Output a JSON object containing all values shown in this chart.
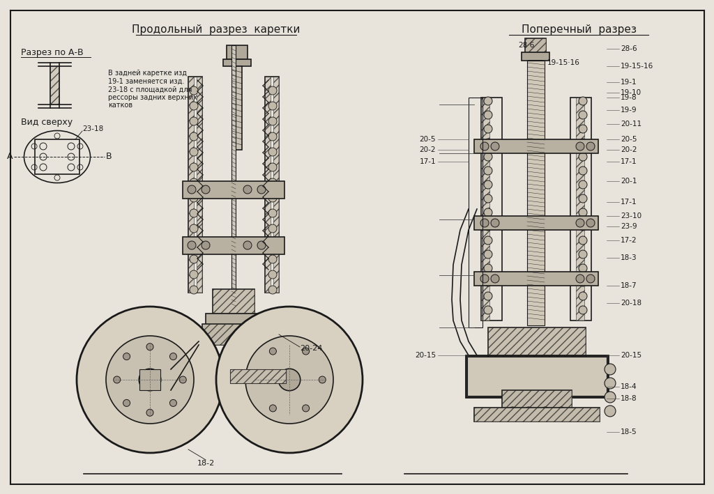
{
  "title": "",
  "background_color": "#e8e4dc",
  "paper_color": "#ddd8cc",
  "line_color": "#1a1a1a",
  "title_left": "Продольный  разрез  каретки",
  "title_right": "Поперечный  разрез",
  "subtitle_left": "Разрез по А-В",
  "subtitle_view": "Вид сверху",
  "note_text": "В задней каретке изд\n19-1 заменяется изд.\n23-18 с площадкой для\nрессоры задних верхних\nкатков",
  "label_23_18": "23-18",
  "label_20_24": "20-24",
  "label_18_2": "18-2",
  "label_A": "А",
  "label_B": "В",
  "right_labels": [
    "28-6",
    "19-15-16",
    "19-1",
    "19-8",
    "19-9",
    "20-11",
    "19-10",
    "20-5",
    "20-2",
    "17-1",
    "20-1",
    "17-1",
    "23-10",
    "23-9",
    "17-2",
    "18-3",
    "18-7",
    "20-18",
    "20-15",
    "18-4",
    "18-8",
    "18-5"
  ],
  "figsize": [
    10.24,
    7.09
  ],
  "dpi": 100
}
